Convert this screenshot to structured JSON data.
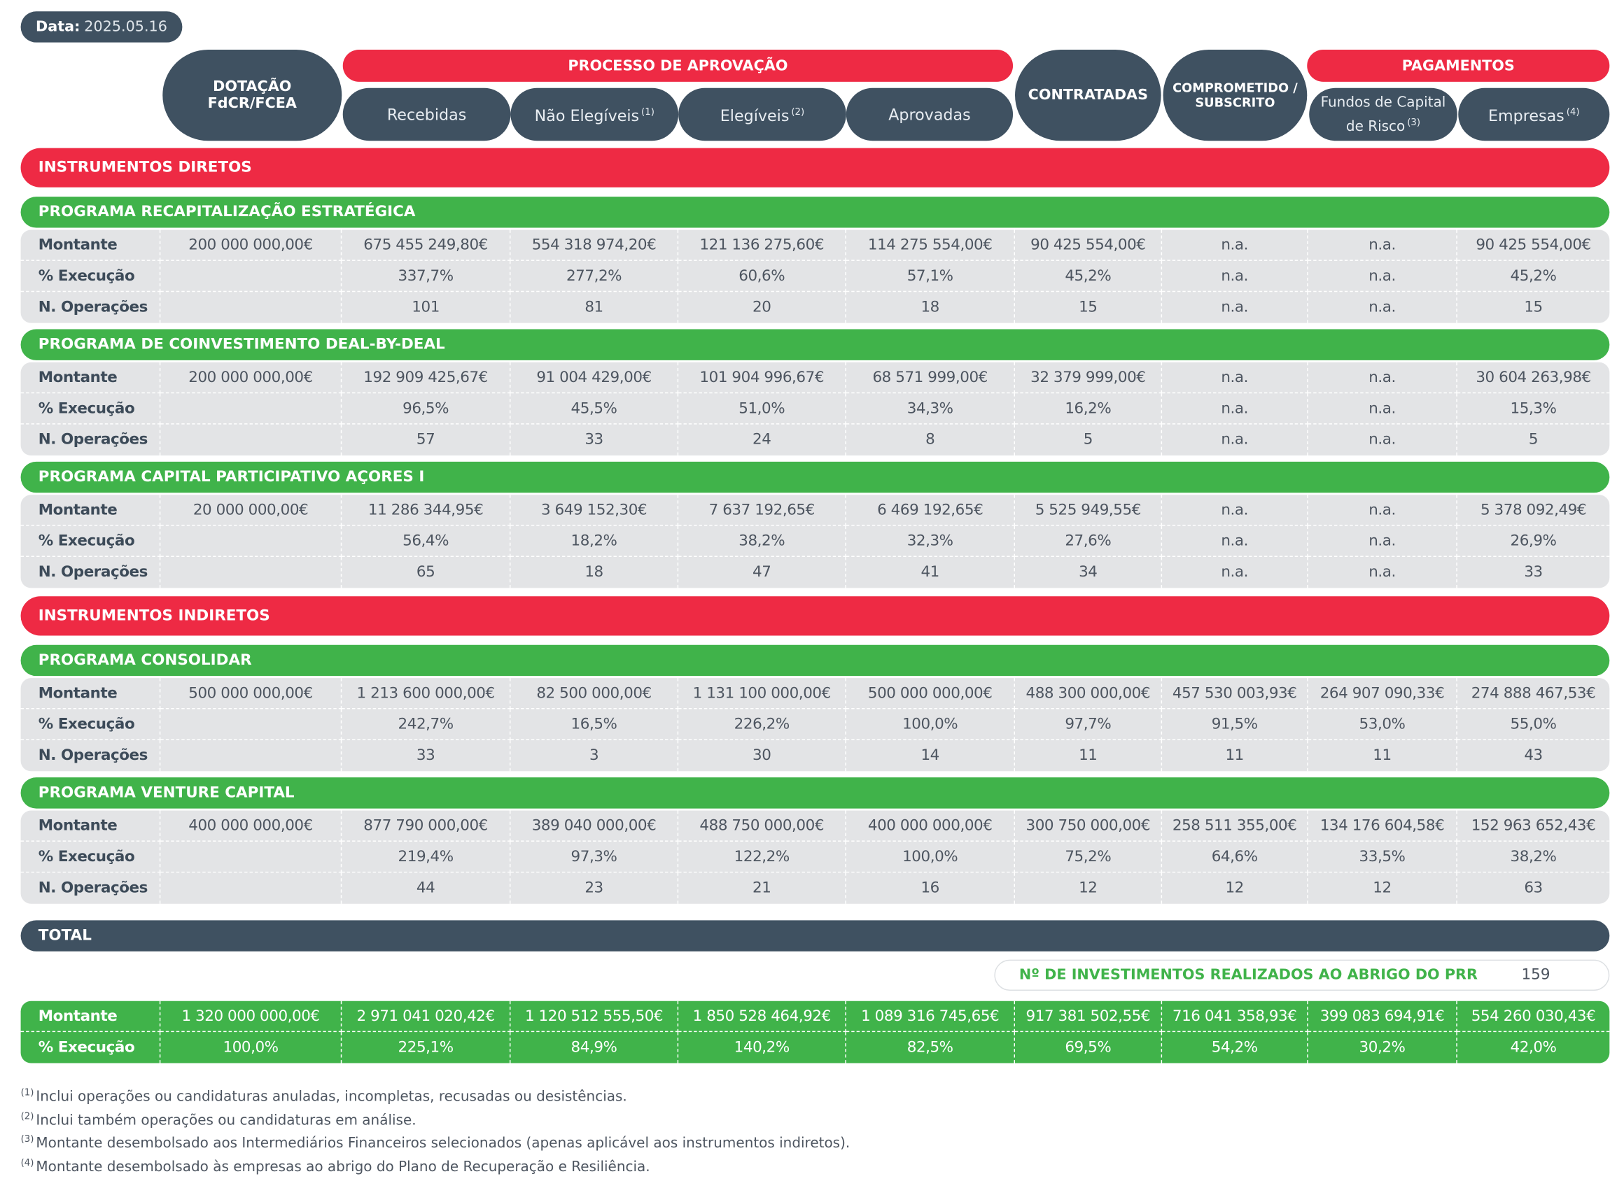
{
  "date": {
    "label": "Data:",
    "value": "2025.05.16"
  },
  "header": {
    "dotacao": [
      "DOTAÇÃO",
      "FdCR/FCEA"
    ],
    "processo": {
      "title": "PROCESSO DE APROVAÇÃO",
      "columns": [
        {
          "label": "Recebidas"
        },
        {
          "label": "Não Elegíveis",
          "note": "(1)"
        },
        {
          "label": "Elegíveis",
          "note": "(2)"
        },
        {
          "label": "Aprovadas"
        }
      ]
    },
    "contratadas": "CONTRATADAS",
    "comprometido": [
      "COMPROMETIDO /",
      "SUBSCRITO"
    ],
    "pagamentos": {
      "title": "PAGAMENTOS",
      "columns": [
        {
          "label": "Fundos de Capital de Risco",
          "note": "(3)"
        },
        {
          "label": "Empresas",
          "note": "(4)"
        }
      ]
    }
  },
  "groups": [
    {
      "title": "INSTRUMENTOS DIRETOS",
      "programs": [
        {
          "title": "PROGRAMA RECAPITALIZAÇÃO ESTRATÉGICA",
          "rows": [
            {
              "label": "Montante",
              "cells": [
                "200 000 000,00€",
                "675 455 249,80€",
                "554 318 974,20€",
                "121 136 275,60€",
                "114 275 554,00€",
                "90 425 554,00€",
                "n.a.",
                "n.a.",
                "90 425 554,00€"
              ]
            },
            {
              "label": "% Execução",
              "cells": [
                null,
                "337,7%",
                "277,2%",
                "60,6%",
                "57,1%",
                "45,2%",
                "n.a.",
                "n.a.",
                "45,2%"
              ]
            },
            {
              "label": "N. Operações",
              "cells": [
                null,
                "101",
                "81",
                "20",
                "18",
                "15",
                "n.a.",
                "n.a.",
                "15"
              ]
            }
          ]
        },
        {
          "title": "PROGRAMA  DE COINVESTIMENTO DEAL-BY-DEAL",
          "rows": [
            {
              "label": "Montante",
              "cells": [
                "200 000 000,00€",
                "192 909 425,67€",
                "91 004 429,00€",
                "101 904 996,67€",
                "68 571 999,00€",
                "32 379 999,00€",
                "n.a.",
                "n.a.",
                "30 604 263,98€"
              ]
            },
            {
              "label": "% Execução",
              "cells": [
                null,
                "96,5%",
                "45,5%",
                "51,0%",
                "34,3%",
                "16,2%",
                "n.a.",
                "n.a.",
                "15,3%"
              ]
            },
            {
              "label": "N. Operações",
              "cells": [
                null,
                "57",
                "33",
                "24",
                "8",
                "5",
                "n.a.",
                "n.a.",
                "5"
              ]
            }
          ]
        },
        {
          "title": "PROGRAMA CAPITAL PARTICIPATIVO AÇORES I",
          "rows": [
            {
              "label": "Montante",
              "cells": [
                "20 000 000,00€",
                "11 286 344,95€",
                "3 649 152,30€",
                "7 637 192,65€",
                "6 469 192,65€",
                "5 525 949,55€",
                "n.a.",
                "n.a.",
                "5 378 092,49€"
              ]
            },
            {
              "label": "% Execução",
              "cells": [
                null,
                "56,4%",
                "18,2%",
                "38,2%",
                "32,3%",
                "27,6%",
                "n.a.",
                "n.a.",
                "26,9%"
              ]
            },
            {
              "label": "N. Operações",
              "cells": [
                null,
                "65",
                "18",
                "47",
                "41",
                "34",
                "n.a.",
                "n.a.",
                "33"
              ]
            }
          ]
        }
      ]
    },
    {
      "title": "INSTRUMENTOS INDIRETOS",
      "programs": [
        {
          "title": "PROGRAMA CONSOLIDAR",
          "rows": [
            {
              "label": "Montante",
              "cells": [
                "500 000 000,00€",
                "1 213 600 000,00€",
                "82 500 000,00€",
                "1 131 100 000,00€",
                "500 000 000,00€",
                "488 300 000,00€",
                "457 530 003,93€",
                "264 907 090,33€",
                "274 888 467,53€"
              ]
            },
            {
              "label": "% Execução",
              "cells": [
                null,
                "242,7%",
                "16,5%",
                "226,2%",
                "100,0%",
                "97,7%",
                "91,5%",
                "53,0%",
                "55,0%"
              ]
            },
            {
              "label": "N. Operações",
              "cells": [
                null,
                "33",
                "3",
                "30",
                "14",
                "11",
                "11",
                "11",
                "43"
              ]
            }
          ]
        },
        {
          "title": "PROGRAMA VENTURE CAPITAL",
          "rows": [
            {
              "label": "Montante",
              "cells": [
                "400 000 000,00€",
                "877 790 000,00€",
                "389 040 000,00€",
                "488 750 000,00€",
                "400 000 000,00€",
                "300 750 000,00€",
                "258 511 355,00€",
                "134 176 604,58€",
                "152 963 652,43€"
              ]
            },
            {
              "label": "% Execução",
              "cells": [
                null,
                "219,4%",
                "97,3%",
                "122,2%",
                "100,0%",
                "75,2%",
                "64,6%",
                "33,5%",
                "38,2%"
              ]
            },
            {
              "label": "N. Operações",
              "cells": [
                null,
                "44",
                "23",
                "21",
                "16",
                "12",
                "12",
                "12",
                "63"
              ]
            }
          ]
        }
      ]
    }
  ],
  "total": {
    "title": "TOTAL",
    "investimentos": {
      "label": "Nº DE INVESTIMENTOS REALIZADOS AO ABRIGO DO PRR",
      "value": "159"
    },
    "rows": [
      {
        "label": "Montante",
        "cells": [
          "1 320 000 000,00€",
          "2 971 041 020,42€",
          "1 120 512 555,50€",
          "1 850 528 464,92€",
          "1 089 316 745,65€",
          "917 381 502,55€",
          "716 041 358,93€",
          "399 083 694,91€",
          "554 260 030,43€"
        ]
      },
      {
        "label": "% Execução",
        "cells": [
          "100,0%",
          "225,1%",
          "84,9%",
          "140,2%",
          "82,5%",
          "69,5%",
          "54,2%",
          "30,2%",
          "42,0%"
        ]
      }
    ]
  },
  "footnotes": [
    {
      "marker": "(1)",
      "text": "Inclui operações ou candidaturas anuladas, incompletas, recusadas ou desistências."
    },
    {
      "marker": "(2)",
      "text": "Inclui também operações ou candidaturas em análise."
    },
    {
      "marker": "(3)",
      "text": "Montante desembolsado aos Intermediários Financeiros selecionados (apenas aplicável aos instrumentos indiretos)."
    },
    {
      "marker": "(4)",
      "text": "Montante desembolsado às empresas ao abrigo do Plano de Recuperação e Resiliência."
    }
  ]
}
